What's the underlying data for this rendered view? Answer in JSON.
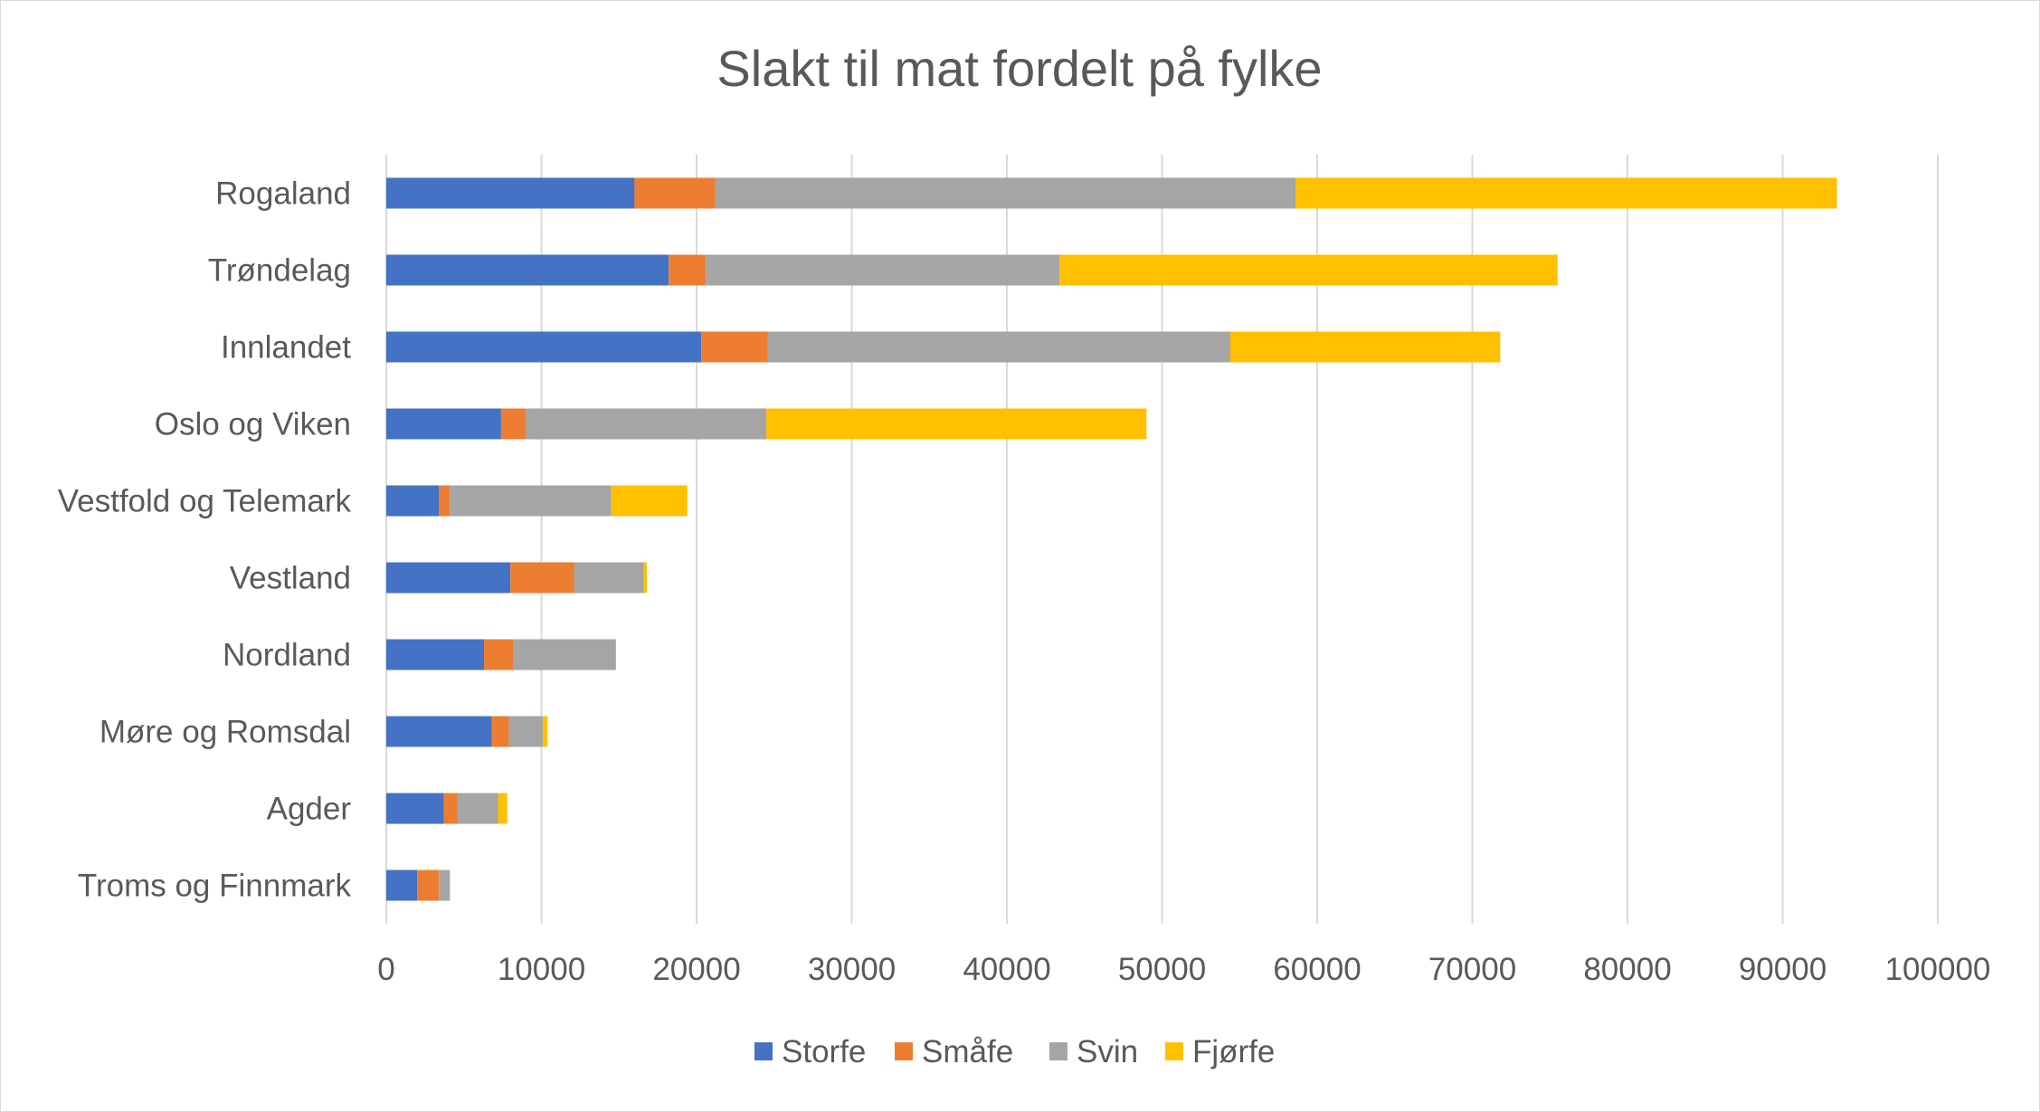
{
  "chart_data": {
    "type": "bar",
    "orientation": "horizontal",
    "stacked": true,
    "title": "Slakt til mat fordelt på fylke",
    "categories": [
      "Rogaland",
      "Trøndelag",
      "Innlandet",
      "Oslo og Viken",
      "Vestfold og Telemark",
      "Vestland",
      "Nordland",
      "Møre og Romsdal",
      "Agder",
      "Troms og Finnmark"
    ],
    "series": [
      {
        "name": "Storfe",
        "color": "#4472c4",
        "values": [
          16000,
          18200,
          20300,
          7400,
          3400,
          8000,
          6300,
          6800,
          3700,
          2000
        ]
      },
      {
        "name": "Småfe",
        "color": "#ed7d31",
        "values": [
          5200,
          2400,
          4300,
          1600,
          700,
          4100,
          1900,
          1100,
          900,
          1400
        ]
      },
      {
        "name": "Svin",
        "color": "#a5a5a5",
        "values": [
          37400,
          22800,
          29800,
          15500,
          10400,
          4500,
          6600,
          2200,
          2600,
          700
        ]
      },
      {
        "name": "Fjørfe",
        "color": "#ffc000",
        "values": [
          34900,
          32100,
          17400,
          24500,
          4900,
          200,
          0,
          300,
          600,
          0
        ]
      }
    ],
    "xlim": [
      0,
      100000
    ],
    "xticks": [
      "0",
      "10000",
      "20000",
      "30000",
      "40000",
      "50000",
      "60000",
      "70000",
      "80000",
      "90000",
      "100000"
    ],
    "grid": "vertical",
    "legend_position": "bottom"
  }
}
